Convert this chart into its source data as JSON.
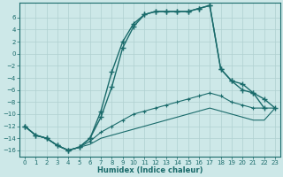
{
  "background_color": "#cde8e8",
  "grid_color": "#b0d0d0",
  "line_color": "#1a6b6b",
  "xlabel": "Humidex (Indice chaleur)",
  "xlim": [
    -0.5,
    23.5
  ],
  "ylim": [
    -17,
    8.5
  ],
  "yticks": [
    -16,
    -14,
    -12,
    -10,
    -8,
    -6,
    -4,
    -2,
    0,
    2,
    4,
    6
  ],
  "xticks": [
    0,
    1,
    2,
    3,
    4,
    5,
    6,
    7,
    8,
    9,
    10,
    11,
    12,
    13,
    14,
    15,
    16,
    17,
    18,
    19,
    20,
    21,
    22,
    23
  ],
  "line1_x": [
    0,
    1,
    2,
    3,
    4,
    5,
    6,
    7,
    8,
    9,
    10,
    11,
    12,
    13,
    14,
    15,
    16,
    17,
    18,
    19,
    20,
    21,
    22
  ],
  "line1_y": [
    -12,
    -13.5,
    -14,
    -15.2,
    -16,
    -15.5,
    -14,
    -9.5,
    -3,
    2,
    5,
    6.5,
    7,
    7,
    7,
    7,
    7.5,
    8,
    -2.5,
    -4.5,
    -6,
    -6.5,
    -9
  ],
  "line2_x": [
    0,
    1,
    2,
    3,
    4,
    5,
    6,
    7,
    8,
    9,
    10,
    11,
    12,
    13,
    14,
    15,
    16,
    17,
    18,
    19,
    20,
    21,
    22,
    23
  ],
  "line2_y": [
    -12,
    -13.5,
    -14,
    -15.2,
    -16,
    -15.5,
    -14,
    -10.5,
    -5.5,
    1,
    4.5,
    6.5,
    7,
    7,
    7,
    7,
    7.5,
    8,
    -2.5,
    -4.5,
    -5,
    -6.5,
    -7.5,
    -9
  ],
  "line3_x": [
    0,
    1,
    2,
    3,
    4,
    5,
    6,
    7,
    8,
    9,
    10,
    11,
    12,
    13,
    14,
    15,
    16,
    17,
    18,
    19,
    20,
    21,
    22,
    23
  ],
  "line3_y": [
    -12,
    -13.5,
    -14,
    -15.2,
    -16,
    -15.5,
    -14.5,
    -13,
    -12,
    -11,
    -10,
    -9.5,
    -9,
    -8.5,
    -8,
    -7.5,
    -7,
    -6.5,
    -7,
    -8,
    -8.5,
    -9,
    -9,
    -9
  ],
  "line4_x": [
    0,
    1,
    2,
    3,
    4,
    5,
    6,
    7,
    8,
    9,
    10,
    11,
    12,
    13,
    14,
    15,
    16,
    17,
    18,
    19,
    20,
    21,
    22,
    23
  ],
  "line4_y": [
    -12,
    -13.5,
    -14,
    -15.2,
    -16,
    -15.5,
    -15,
    -14,
    -13.5,
    -13,
    -12.5,
    -12,
    -11.5,
    -11,
    -10.5,
    -10,
    -9.5,
    -9,
    -9.5,
    -10,
    -10.5,
    -11,
    -11,
    -9
  ]
}
